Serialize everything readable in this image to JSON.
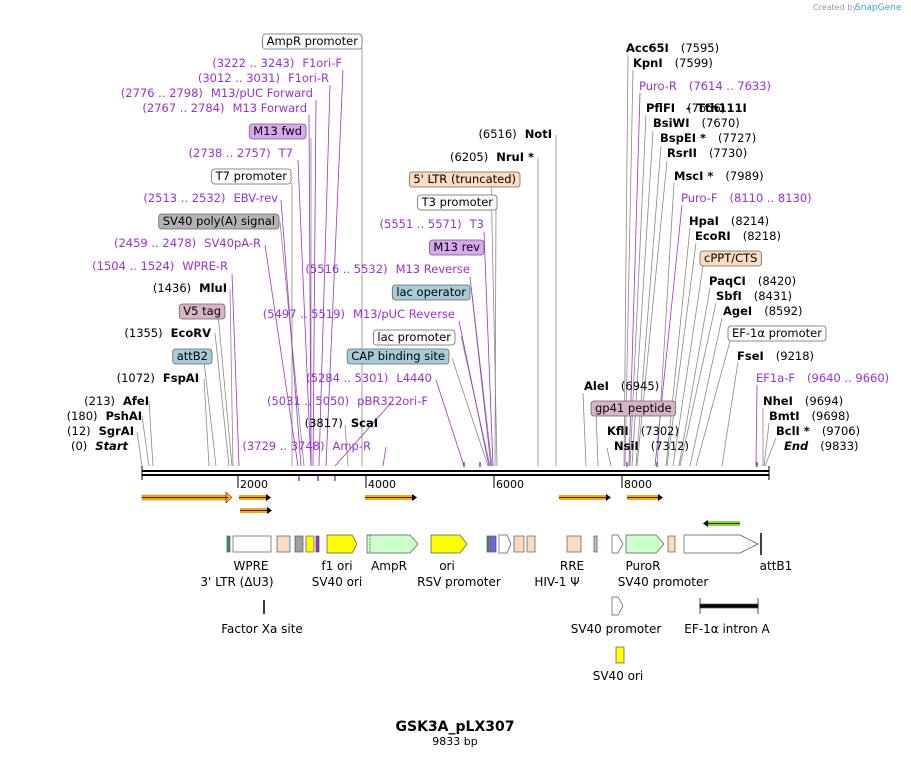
{
  "credit": "Created by",
  "brand": "SnapGene",
  "title": "GSK3A_pLX307",
  "length": "9833 bp",
  "ruler": [
    "2000",
    "4000",
    "6000",
    "8000"
  ],
  "left_labels": [
    {
      "box": "AmpR promoter",
      "color": "#ffffff"
    },
    {
      "pos": "(3222 .. 3243)",
      "name": "F1ori-F",
      "primer": true
    },
    {
      "pos": "(3012 .. 3031)",
      "name": "F1ori-R",
      "primer": true
    },
    {
      "pos": "(2776 .. 2798)",
      "name": "M13/pUC Forward",
      "primer": true
    },
    {
      "pos": "(2767 .. 2784)",
      "name": "M13 Forward",
      "primer": true
    },
    {
      "box": "M13 fwd",
      "color": "#d9a6f0"
    },
    {
      "pos": "(2738 .. 2757)",
      "name": "T7",
      "primer": true
    },
    {
      "box": "T7 promoter",
      "color": "#ffffff"
    },
    {
      "pos": "(2513 .. 2532)",
      "name": "EBV-rev",
      "primer": true
    },
    {
      "box": "SV40 poly(A) signal",
      "color": "#b3b3b3"
    },
    {
      "pos": "(2459 .. 2478)",
      "name": "SV40pA-R",
      "primer": true
    },
    {
      "pos": "(1504 .. 1524)",
      "name": "WPRE-R",
      "primer": true
    },
    {
      "pos": "(1436)",
      "name": "MluI"
    },
    {
      "box": "V5 tag",
      "color": "#d9b3c6"
    },
    {
      "pos": "(1355)",
      "name": "EcoRV"
    },
    {
      "box": "attB2",
      "color": "#a6cbd9"
    },
    {
      "pos": "(1072)",
      "name": "FspAI"
    },
    {
      "pos": "(213)",
      "name": "AfeI"
    },
    {
      "pos": "(180)",
      "name": "PshAI"
    },
    {
      "pos": "(12)",
      "name": "SgrAI"
    },
    {
      "pos": "(0)",
      "name": "Start"
    }
  ],
  "middle_labels": [
    {
      "pos": "(5516 .. 5532)",
      "name": "M13 Reverse",
      "primer": true
    },
    {
      "pos": "(5497 .. 5519)",
      "name": "M13/pUC Reverse",
      "primer": true
    },
    {
      "box": "CAP binding site",
      "color": "#a6cbd9"
    },
    {
      "pos": "(5284 .. 5301)",
      "name": "L4440",
      "primer": true
    },
    {
      "pos": "(5031 .. 5050)",
      "name": "pBR322ori-F",
      "primer": true
    },
    {
      "pos": "(3817)",
      "name": "ScaI"
    },
    {
      "pos": "(3729 .. 3748)",
      "name": "Amp-R",
      "primer": true
    }
  ],
  "center_labels": [
    {
      "pos": "(6516)",
      "name": "NotI"
    },
    {
      "pos": "(6205)",
      "name": "NruI *"
    },
    {
      "box": "5' LTR (truncated)",
      "color": "#fbdcc0"
    },
    {
      "box": "T3 promoter",
      "color": "#ffffff"
    },
    {
      "pos": "(5551 .. 5571)",
      "name": "T3",
      "primer": true
    },
    {
      "box": "M13 rev",
      "color": "#d9a6f0"
    },
    {
      "box": "lac operator",
      "color": "#a6cbd9"
    },
    {
      "box": "lac promoter",
      "color": "#ffffff"
    }
  ],
  "right_labels": [
    {
      "name": "Acc65I",
      "pos": "(7595)"
    },
    {
      "name": "KpnI",
      "pos": "(7599)"
    },
    {
      "name": "Puro-R",
      "pos": "(7614 .. 7633)",
      "primer": true
    },
    {
      "name": "PflFI",
      "pos": "(7656)"
    },
    {
      "name": "Tth111I",
      "pos": ""
    },
    {
      "name": "BsiWI",
      "pos": "(7670)"
    },
    {
      "name": "BspEI *",
      "pos": "(7727)"
    },
    {
      "name": "RsrII",
      "pos": "(7730)"
    },
    {
      "name": "MscI *",
      "pos": "(7989)"
    },
    {
      "name": "Puro-F",
      "pos": "(8110 .. 8130)",
      "primer": true
    },
    {
      "name": "HpaI",
      "pos": "(8214)"
    },
    {
      "name": "EcoRI",
      "pos": "(8218)"
    },
    {
      "box": "cPPT/CTS",
      "color": "#fbdcc0"
    },
    {
      "name": "PaqCI",
      "pos": "(8420)"
    },
    {
      "name": "SbfI",
      "pos": "(8431)"
    },
    {
      "name": "AgeI",
      "pos": "(8592)"
    },
    {
      "box": "EF-1α promoter",
      "color": "#ffffff"
    },
    {
      "name": "FseI",
      "pos": "(9218)"
    },
    {
      "name": "EF1a-F",
      "pos": "(9640 .. 9660)",
      "primer": true
    },
    {
      "name": "NheI",
      "pos": "(9694)"
    },
    {
      "name": "BmtI",
      "pos": "(9698)"
    },
    {
      "name": "BclI *",
      "pos": "(9706)"
    },
    {
      "name": "End",
      "pos": "(9833)"
    }
  ],
  "lower_sites": [
    {
      "name": "AleI",
      "pos": "(6945)"
    },
    {
      "box": "gp41 peptide",
      "color": "#d9b3c6"
    },
    {
      "name": "KflI",
      "pos": "(7302)"
    },
    {
      "name": "NsiI",
      "pos": "(7312)"
    }
  ],
  "feature_labels": [
    "WPRE",
    "3' LTR (ΔU3)",
    "f1 ori",
    "SV40 ori",
    "AmpR",
    "ori",
    "RSV promoter",
    "RRE",
    "HIV-1 Ψ",
    "PuroR",
    "SV40 promoter",
    "attB1",
    "Factor Xa site",
    "SV40 promoter",
    "EF-1α intron A",
    "SV40 ori"
  ],
  "colors": {
    "primer": "#9a32cd",
    "yellow": "#ffff00",
    "green": "#ccffcc",
    "orange": "#f5a623",
    "peach": "#fbdcc0"
  }
}
